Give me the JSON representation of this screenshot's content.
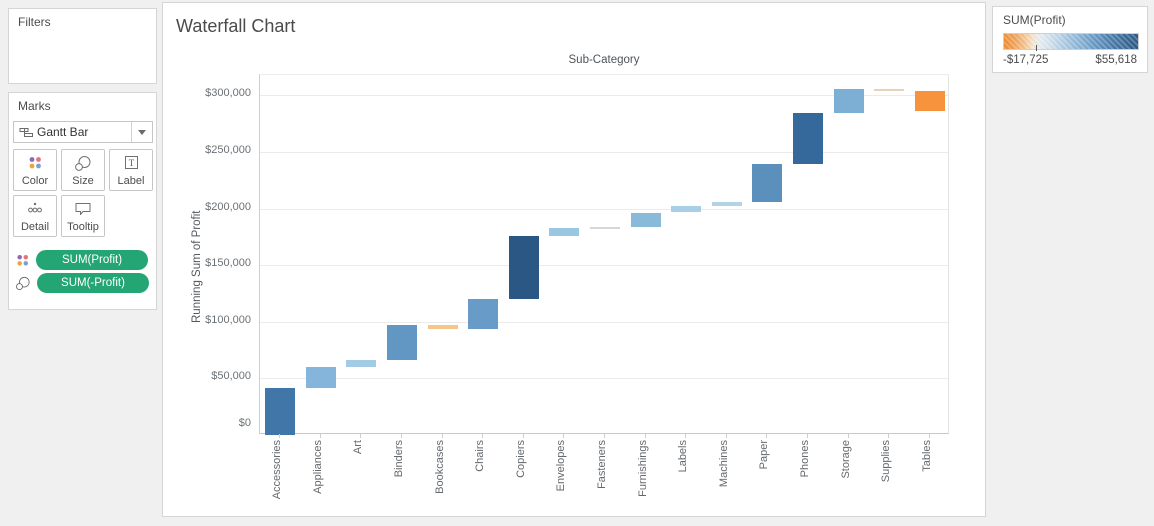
{
  "filters_panel": {
    "title": "Filters"
  },
  "marks_panel": {
    "title": "Marks",
    "mark_type_selector": "Gantt Bar",
    "buttons": [
      {
        "label": "Color"
      },
      {
        "label": "Size"
      },
      {
        "label": "Label"
      },
      {
        "label": "Detail"
      },
      {
        "label": "Tooltip"
      }
    ],
    "pills": [
      {
        "label": "SUM(Profit)"
      },
      {
        "label": "SUM(-Profit)"
      }
    ],
    "pill_color": "#23a574"
  },
  "sheet_title": "Waterfall Chart",
  "chart_data": {
    "type": "waterfall",
    "title": "Waterfall Chart",
    "column_header": "Sub-Category",
    "xlabel": "Sub-Category",
    "ylabel": "Running Sum of Profit",
    "categories": [
      "Accessories",
      "Appliances",
      "Art",
      "Binders",
      "Bookcases",
      "Chairs",
      "Copiers",
      "Envelopes",
      "Fasteners",
      "Furnishings",
      "Labels",
      "Machines",
      "Paper",
      "Phones",
      "Storage",
      "Supplies",
      "Tables"
    ],
    "series": [
      {
        "name": "SUM(Profit)",
        "values": [
          41937,
          18138,
          6528,
          30222,
          -3473,
          26590,
          55618,
          6964,
          950,
          13059,
          5546,
          3385,
          34054,
          44516,
          21279,
          -1189,
          -17725
        ]
      }
    ],
    "running_totals": [
      41937,
      60075,
      66603,
      96825,
      93352,
      119942,
      175560,
      182524,
      183474,
      196533,
      202079,
      205464,
      239518,
      284034,
      305313,
      304124,
      286399
    ],
    "bar_colors": [
      "#4076a8",
      "#85b5da",
      "#a3cbe5",
      "#6297c4",
      "#f6c689",
      "#699bc8",
      "#2a5783",
      "#99c6e1",
      "#d3d7d9",
      "#8abada",
      "#a9cfe6",
      "#b5d3e8",
      "#5b90bd",
      "#35699b",
      "#7dafd5",
      "#e6d3ba",
      "#f8933d"
    ],
    "y_ticks": [
      {
        "label": "$0",
        "value": 0
      },
      {
        "label": "$50,000",
        "value": 50000
      },
      {
        "label": "$100,000",
        "value": 100000
      },
      {
        "label": "$150,000",
        "value": 150000
      },
      {
        "label": "$200,000",
        "value": 200000
      },
      {
        "label": "$250,000",
        "value": 250000
      },
      {
        "label": "$300,000",
        "value": 300000
      }
    ],
    "ylim": [
      0,
      318000
    ],
    "grid": true,
    "legend_position": "top-right"
  },
  "legend": {
    "title": "SUM(Profit)",
    "min_label": "-$17,725",
    "max_label": "$55,618",
    "min_color": "#ef8d31",
    "max_color": "#2a5783",
    "zero_tick_fraction": 0.242
  }
}
